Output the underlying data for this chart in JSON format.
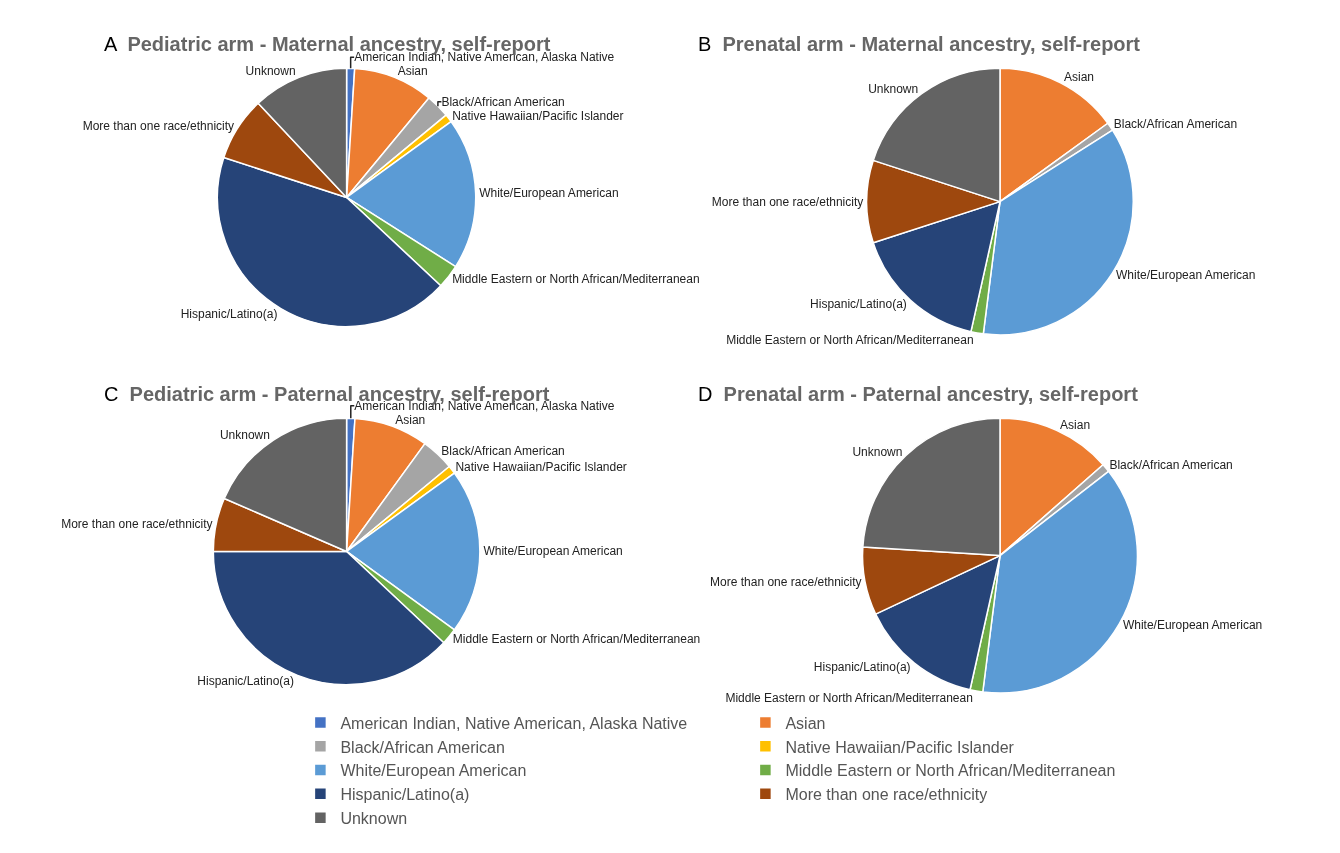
{
  "chart_data": [
    {
      "type": "pie",
      "title": "Pediatric arm - Maternal ancestry, self-report",
      "annotations": [
        "A"
      ],
      "legend": "bottom",
      "categories": [
        "American Indian, Native American, Alaska Native",
        "Asian",
        "Black/African American",
        "Native Hawaiian/Pacific Islander",
        "White/European American",
        "Middle Eastern or North African/Mediterranean",
        "Hispanic/Latino(a)",
        "More than one race/ethnicity",
        "Unknown"
      ],
      "values": [
        1,
        10,
        3,
        1,
        19,
        3,
        43,
        8,
        12
      ],
      "colors": [
        "#4472c4",
        "#ed7d31",
        "#a5a5a5",
        "#ffc000",
        "#5b9bd5",
        "#70ad47",
        "#264478",
        "#9e480e",
        "#636363"
      ]
    },
    {
      "type": "pie",
      "title": "Prenatal arm - Maternal ancestry, self-report",
      "annotations": [
        "B"
      ],
      "categories": [
        "Asian",
        "Black/African American",
        "White/European American",
        "Middle Eastern or North African/Mediterranean",
        "Hispanic/Latino(a)",
        "More than one race/ethnicity",
        "Unknown"
      ],
      "values": [
        15,
        1,
        36,
        1.5,
        16.5,
        10,
        20
      ],
      "colors": [
        "#ed7d31",
        "#a5a5a5",
        "#5b9bd5",
        "#70ad47",
        "#264478",
        "#9e480e",
        "#636363"
      ]
    },
    {
      "type": "pie",
      "title": "Pediatric arm - Paternal ancestry, self-report",
      "annotations": [
        "C"
      ],
      "categories": [
        "American Indian, Native American, Alaska Native",
        "Asian",
        "Black/African American",
        "Native Hawaiian/Pacific Islander",
        "White/European American",
        "Middle Eastern or North African/Mediterranean",
        "Hispanic/Latino(a)",
        "More than one race/ethnicity",
        "Unknown"
      ],
      "values": [
        1,
        9,
        4,
        1,
        20,
        2,
        38,
        6.5,
        18.5
      ],
      "colors": [
        "#4472c4",
        "#ed7d31",
        "#a5a5a5",
        "#ffc000",
        "#5b9bd5",
        "#70ad47",
        "#264478",
        "#9e480e",
        "#636363"
      ]
    },
    {
      "type": "pie",
      "title": "Prenatal arm - Paternal ancestry, self-report",
      "annotations": [
        "D"
      ],
      "categories": [
        "Asian",
        "Black/African American",
        "White/European American",
        "Middle Eastern or North African/Mediterranean",
        "Hispanic/Latino(a)",
        "More than one race/ethnicity",
        "Unknown"
      ],
      "values": [
        13.5,
        1,
        37.5,
        1.5,
        14.5,
        8,
        24
      ],
      "colors": [
        "#ed7d31",
        "#a5a5a5",
        "#5b9bd5",
        "#70ad47",
        "#264478",
        "#9e480e",
        "#636363"
      ]
    }
  ]
}
